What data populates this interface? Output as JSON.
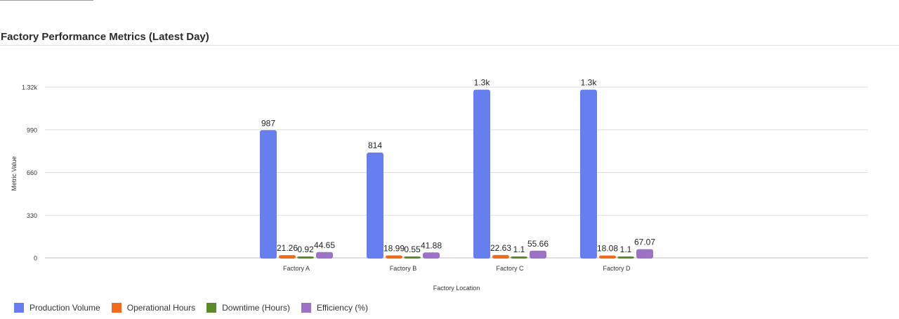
{
  "header": {
    "title": "Factory Performance Metrics (Latest Day)"
  },
  "chart_data": {
    "type": "bar",
    "categories": [
      "Factory A",
      "Factory B",
      "Factory C",
      "Factory D"
    ],
    "series": [
      {
        "name": "Production Volume",
        "color": "#667eee",
        "values": [
          987,
          814,
          1300,
          1300
        ],
        "labels": [
          "987",
          "814",
          "1.3k",
          "1.3k"
        ]
      },
      {
        "name": "Operational Hours",
        "color": "#ef6a1b",
        "values": [
          21.26,
          18.99,
          22.63,
          18.08
        ],
        "labels": [
          "21.26",
          "18.99",
          "22.63",
          "18.08"
        ]
      },
      {
        "name": "Downtime (Hours)",
        "color": "#5a8a2a",
        "values": [
          0.92,
          0.55,
          1.1,
          1.1
        ],
        "labels": [
          "0.92",
          "0.55",
          "1.1",
          "1.1"
        ]
      },
      {
        "name": "Efficiency (%)",
        "color": "#9b72c6",
        "values": [
          44.65,
          41.88,
          55.66,
          67.07
        ],
        "labels": [
          "44.65",
          "41.88",
          "55.66",
          "67.07"
        ]
      }
    ],
    "y_ticks": [
      0,
      330,
      660,
      990,
      1320
    ],
    "y_tick_labels": [
      "0",
      "330",
      "660",
      "990",
      "1.32k"
    ],
    "ylim": [
      0,
      1320
    ],
    "xlabel": "Factory Location",
    "ylabel": "Metric Value",
    "grid": true,
    "legend_position": "bottom-left"
  }
}
